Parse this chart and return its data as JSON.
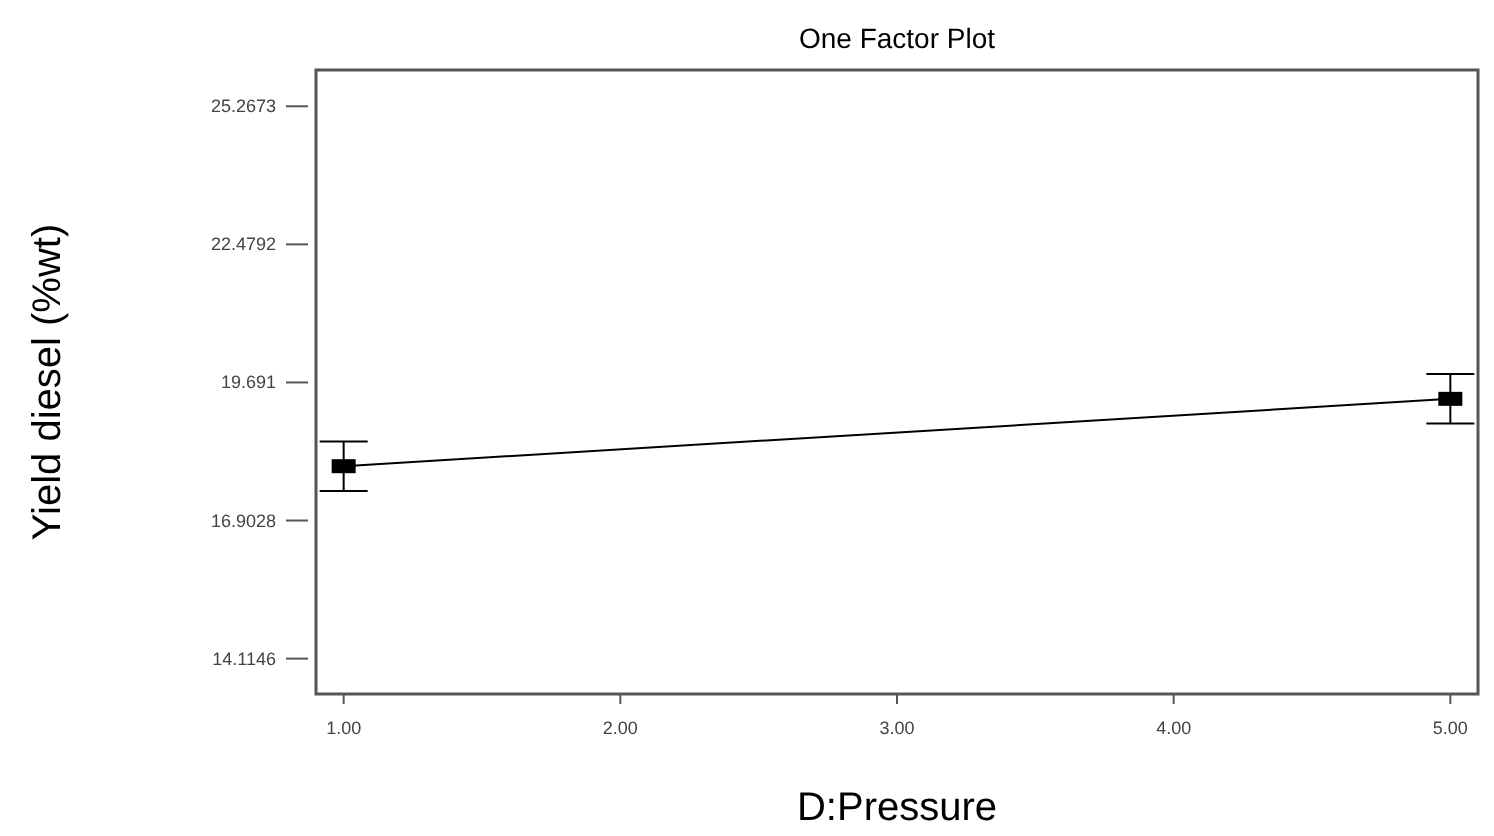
{
  "chart_data": {
    "type": "line",
    "title": "One Factor Plot",
    "xlabel": "D:Pressure",
    "ylabel": "Yield diesel (%wt)",
    "x": [
      1,
      5
    ],
    "series": [
      {
        "color": "#000000",
        "values": [
          18.0,
          19.36
        ],
        "errors": [
          0.5,
          0.5
        ]
      }
    ],
    "marker": "square",
    "line_style": "solid",
    "grid": false,
    "xlim": [
      0.9,
      5.1
    ],
    "xticks": [
      {
        "value": 1,
        "label": "1.00"
      },
      {
        "value": 2,
        "label": "2.00"
      },
      {
        "value": 3,
        "label": "3.00"
      },
      {
        "value": 4,
        "label": "4.00"
      },
      {
        "value": 5,
        "label": "5.00"
      }
    ],
    "ylim": [
      13.4,
      26.0
    ],
    "yticks": [
      14.1146,
      16.9028,
      19.691,
      22.4792,
      25.2673
    ]
  }
}
